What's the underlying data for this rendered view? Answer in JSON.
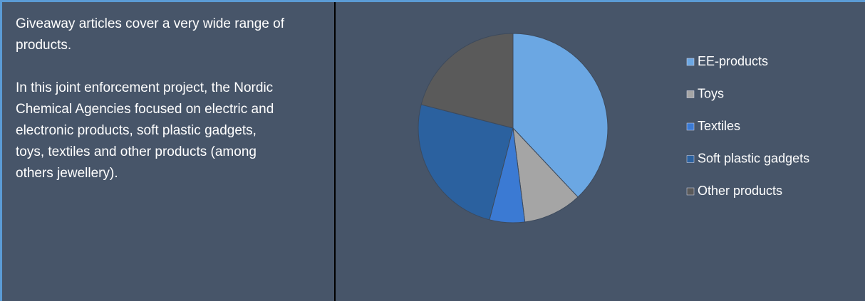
{
  "text": {
    "paragraphs": [
      "Giveaway articles cover a very wide range of products.",
      "In this joint enforcement project, the Nordic Chemical Agencies focused on electric and electronic products, soft plastic gadgets, toys, textiles and other products (among others jewellery)."
    ]
  },
  "chart_data": {
    "type": "pie",
    "categories": [
      "EE-products",
      "Toys",
      "Textiles",
      "Soft plastic gadgets",
      "Other products"
    ],
    "values": [
      38,
      10,
      6,
      25,
      21
    ],
    "colors": [
      "#6ba7e3",
      "#a5a5a5",
      "#3b7ad3",
      "#2b619f",
      "#5a5a5a"
    ],
    "legend": "right"
  }
}
